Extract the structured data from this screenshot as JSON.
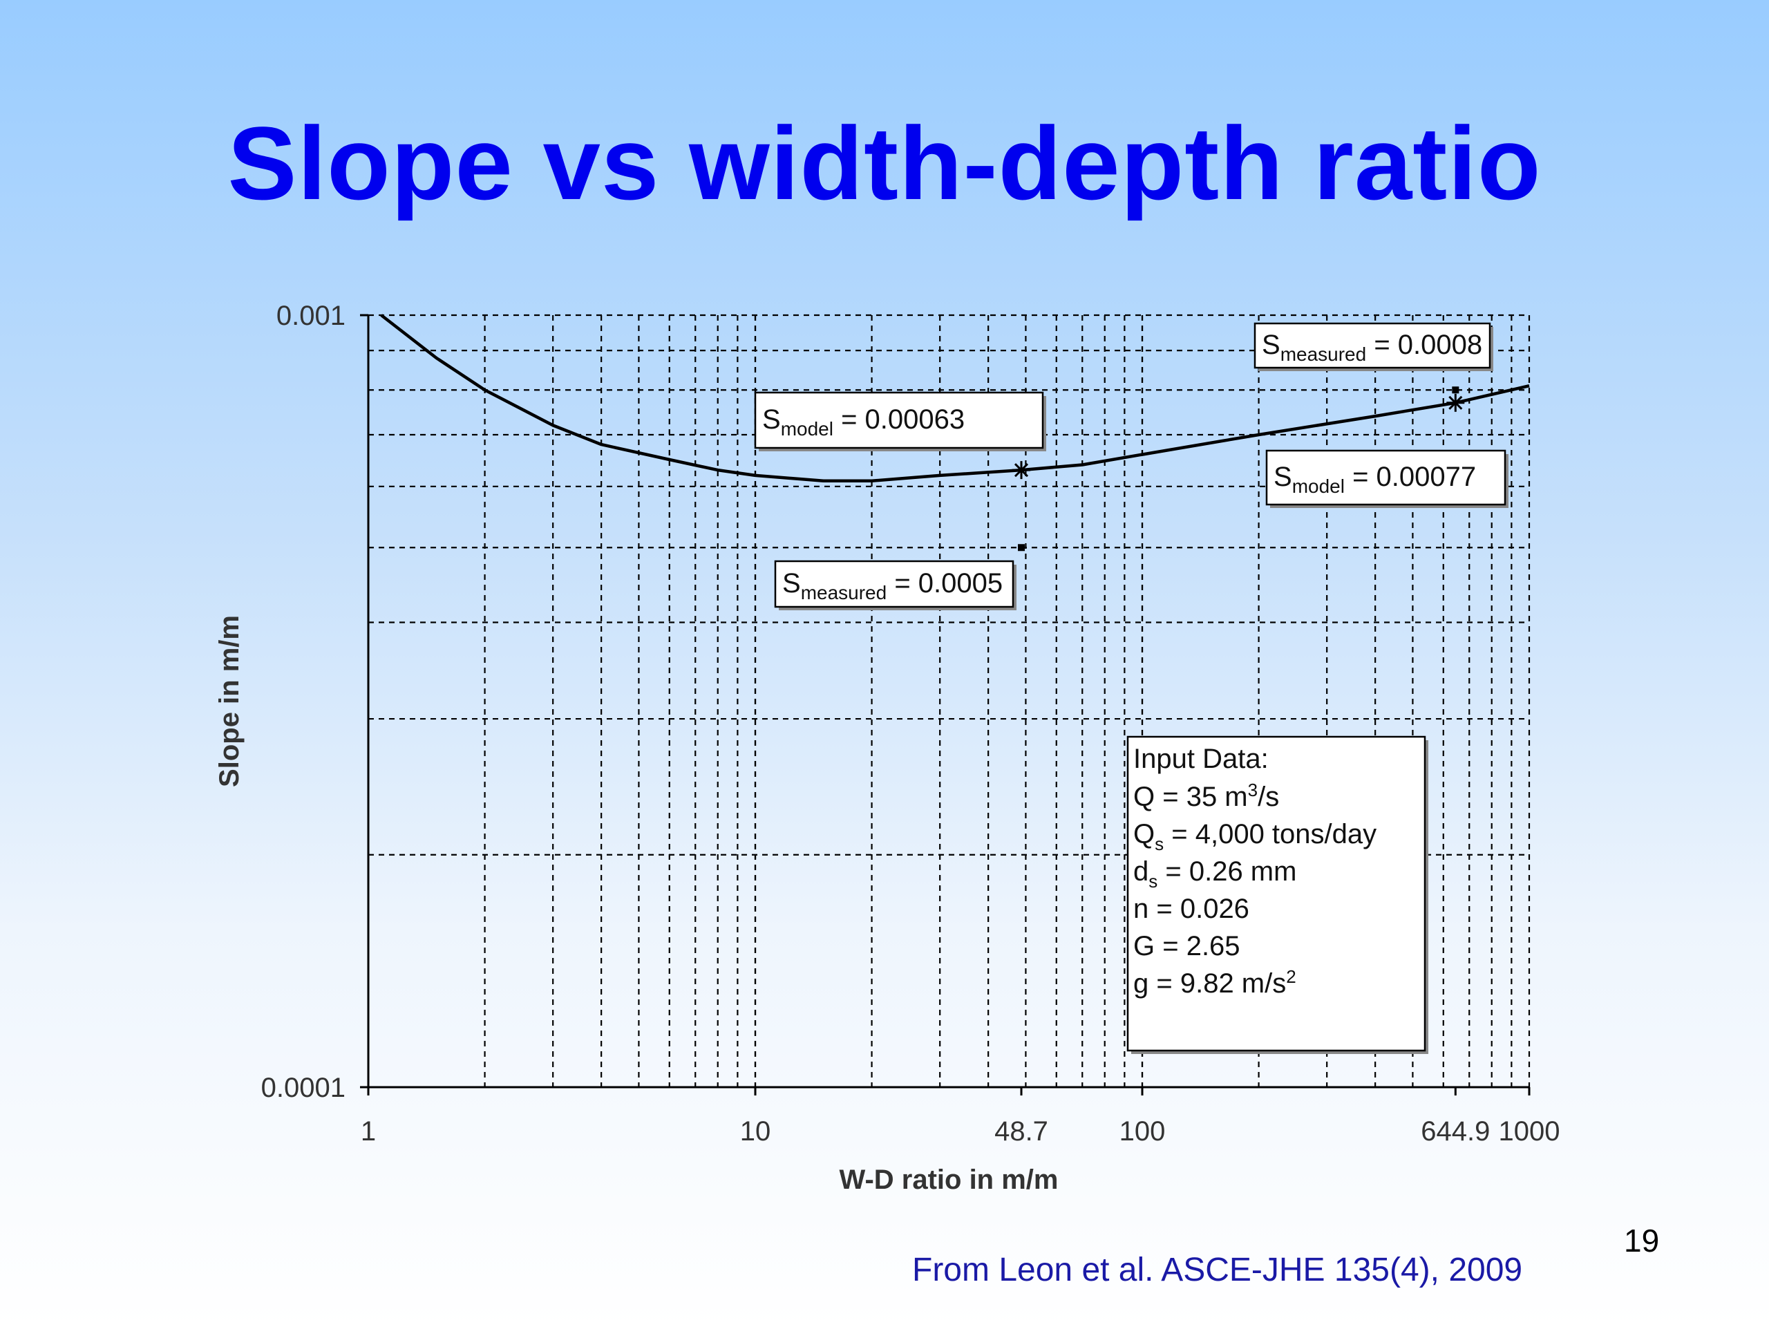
{
  "slide": {
    "title": "Slope vs width-depth ratio",
    "citation": "From Leon et al. ASCE-JHE 135(4), 2009",
    "page_number": "19"
  },
  "chart_data": {
    "type": "line",
    "title": "",
    "xlabel": "W-D ratio in m/m",
    "ylabel": "Slope in m/m",
    "xscale": "log",
    "yscale": "log",
    "xlim": [
      1,
      1000
    ],
    "ylim": [
      0.0001,
      0.001
    ],
    "grid": true,
    "x_tick_labels": [
      "1",
      "10",
      "48.7",
      "100",
      "644.9",
      "1000"
    ],
    "x_tick_values": [
      1,
      10,
      48.7,
      100,
      644.9,
      1000
    ],
    "y_tick_labels": [
      "0.0001",
      "0.001"
    ],
    "y_tick_values": [
      0.0001,
      0.001
    ],
    "series": [
      {
        "x": [
          1.08,
          1.5,
          2,
          3,
          4,
          6,
          8,
          10,
          15,
          20,
          30,
          48.7,
          70,
          100,
          200,
          400,
          644.9,
          1000
        ],
        "y": [
          0.001,
          0.00088,
          0.0008,
          0.00072,
          0.00068,
          0.00065,
          0.00063,
          0.00062,
          0.00061,
          0.00061,
          0.00062,
          0.00063,
          0.00064,
          0.00066,
          0.0007,
          0.00074,
          0.00077,
          0.00081
        ]
      }
    ],
    "model_points": [
      {
        "x": 48.7,
        "y": 0.00063
      },
      {
        "x": 644.9,
        "y": 0.00077
      }
    ],
    "measured_points": [
      {
        "x": 48.7,
        "y": 0.0005
      },
      {
        "x": 644.9,
        "y": 0.0008
      }
    ],
    "annotations": [
      {
        "id": "s_model_1",
        "symbol": "S",
        "subscript": "model",
        "value": " = 0.00063"
      },
      {
        "id": "s_measured_1",
        "symbol": "S",
        "subscript": "measured",
        "value": " = 0.0005"
      },
      {
        "id": "s_measured_2",
        "symbol": "S",
        "subscript": "measured",
        "value": " = 0.0008"
      },
      {
        "id": "s_model_2",
        "symbol": "S",
        "subscript": "model",
        "value": " = 0.00077"
      }
    ],
    "input_data": {
      "heading": "Input Data:",
      "lines": [
        {
          "pre": "Q = 35 m",
          "sup": "3",
          "sub": "",
          "post": "/s"
        },
        {
          "pre": "Q",
          "sup": "",
          "sub": "s",
          "post": " = 4,000 tons/day"
        },
        {
          "pre": "d",
          "sup": "",
          "sub": "s",
          "post": " = 0.26 mm"
        },
        {
          "pre": "n = 0.026",
          "sup": "",
          "sub": "",
          "post": ""
        },
        {
          "pre": "G = 2.65",
          "sup": "",
          "sub": "",
          "post": ""
        },
        {
          "pre": "g = 9.82 m/s",
          "sup": "2",
          "sub": "",
          "post": ""
        }
      ]
    }
  }
}
